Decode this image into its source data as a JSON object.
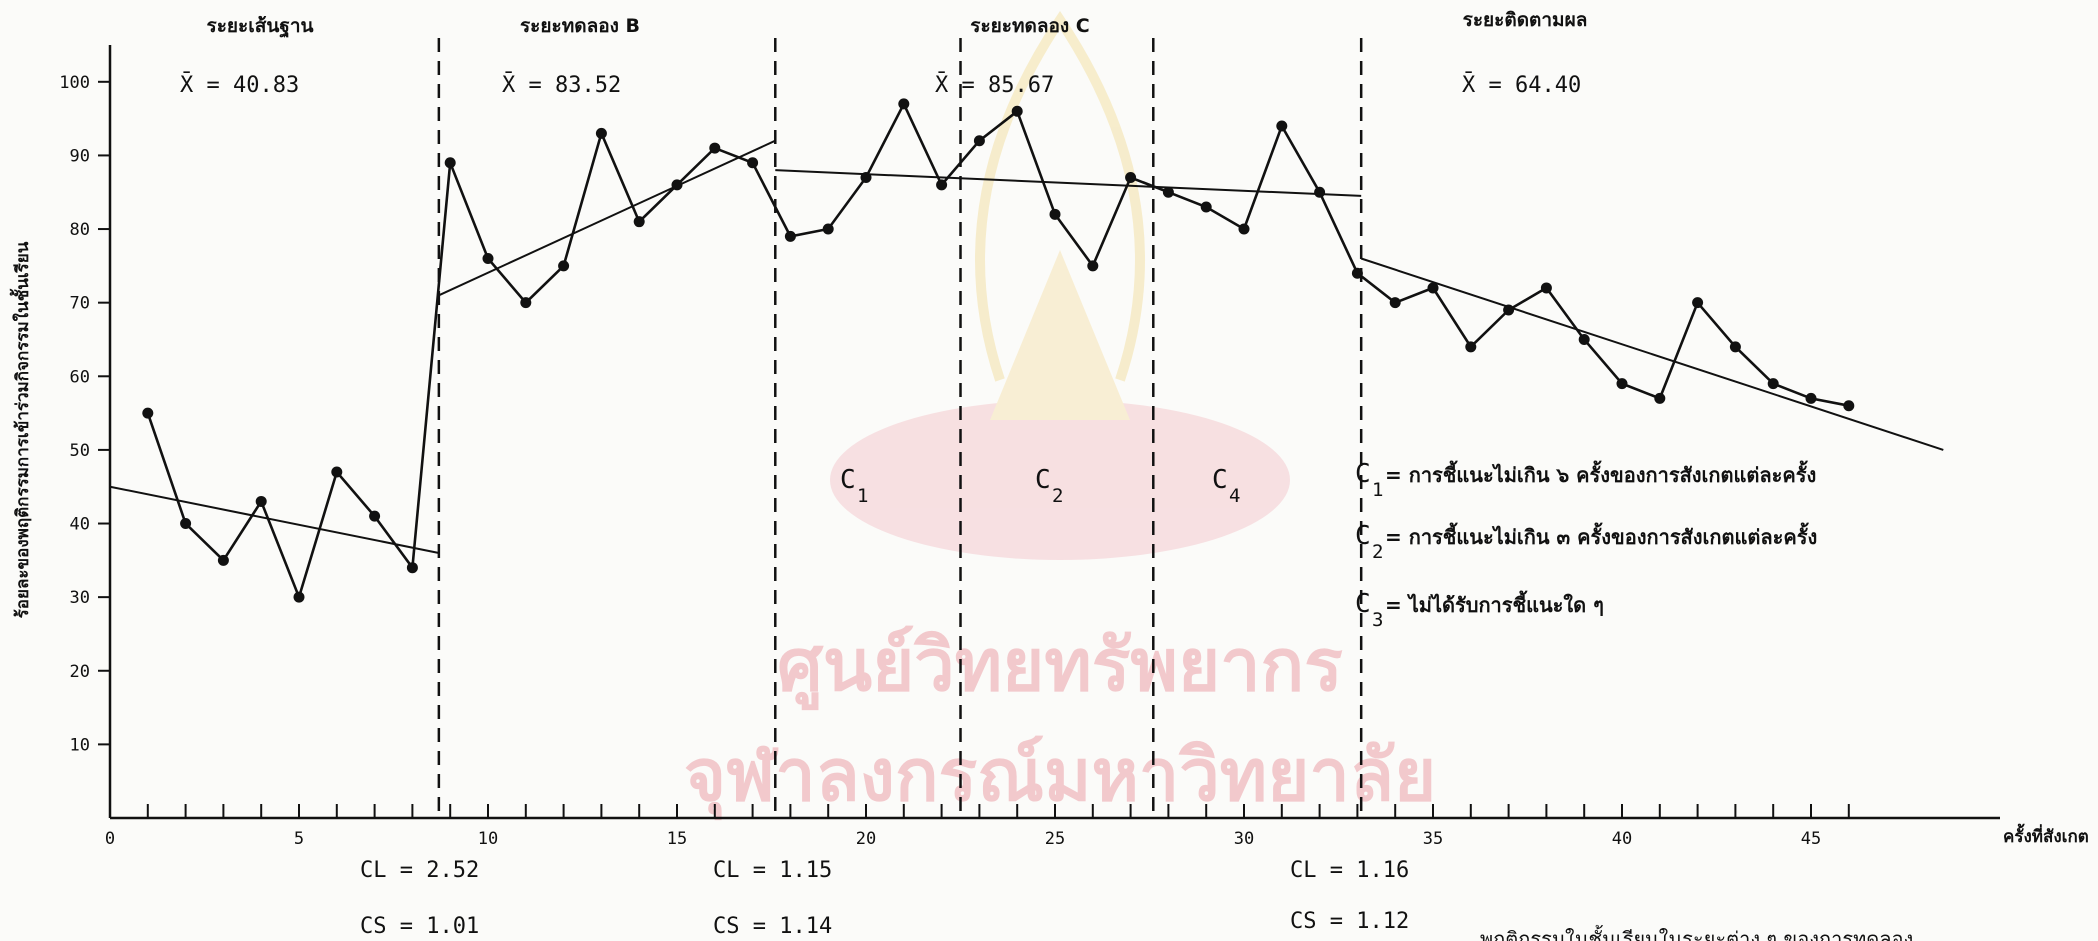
{
  "chart_data": {
    "type": "line",
    "ylabel": "ร้อยละของพฤติกรรมการเข้าร่วมกิจกรรมในชั้นเรียน",
    "xlabel": "ครั้งที่สังเกต",
    "xlim": [
      0,
      50
    ],
    "ylim": [
      0,
      105
    ],
    "x_ticks": [
      0,
      5,
      10,
      15,
      20,
      25,
      30,
      35,
      40,
      45
    ],
    "y_ticks": [
      10,
      20,
      30,
      40,
      50,
      60,
      70,
      80,
      90,
      100
    ],
    "series": [
      {
        "values": [
          {
            "x": 1,
            "y": 55
          },
          {
            "x": 2,
            "y": 40
          },
          {
            "x": 3,
            "y": 35
          },
          {
            "x": 4,
            "y": 43
          },
          {
            "x": 5,
            "y": 30
          },
          {
            "x": 6,
            "y": 47
          },
          {
            "x": 7,
            "y": 41
          },
          {
            "x": 8,
            "y": 34
          },
          {
            "x": 9,
            "y": 89
          },
          {
            "x": 10,
            "y": 76
          },
          {
            "x": 11,
            "y": 70
          },
          {
            "x": 12,
            "y": 75
          },
          {
            "x": 13,
            "y": 93
          },
          {
            "x": 14,
            "y": 81
          },
          {
            "x": 15,
            "y": 86
          },
          {
            "x": 16,
            "y": 91
          },
          {
            "x": 17,
            "y": 89
          },
          {
            "x": 18,
            "y": 79
          },
          {
            "x": 19,
            "y": 80
          },
          {
            "x": 20,
            "y": 87
          },
          {
            "x": 21,
            "y": 97
          },
          {
            "x": 22,
            "y": 86
          },
          {
            "x": 23,
            "y": 92
          },
          {
            "x": 24,
            "y": 96
          },
          {
            "x": 25,
            "y": 82
          },
          {
            "x": 26,
            "y": 75
          },
          {
            "x": 27,
            "y": 87
          },
          {
            "x": 28,
            "y": 85
          },
          {
            "x": 29,
            "y": 83
          },
          {
            "x": 30,
            "y": 80
          },
          {
            "x": 31,
            "y": 94
          },
          {
            "x": 32,
            "y": 85
          },
          {
            "x": 33,
            "y": 74
          },
          {
            "x": 34,
            "y": 70
          },
          {
            "x": 35,
            "y": 72
          },
          {
            "x": 36,
            "y": 64
          },
          {
            "x": 37,
            "y": 69
          },
          {
            "x": 38,
            "y": 72
          },
          {
            "x": 39,
            "y": 65
          },
          {
            "x": 40,
            "y": 59
          },
          {
            "x": 41,
            "y": 57
          },
          {
            "x": 42,
            "y": 70
          },
          {
            "x": 43,
            "y": 64
          },
          {
            "x": 44,
            "y": 59
          },
          {
            "x": 45,
            "y": 57
          },
          {
            "x": 46,
            "y": 56
          }
        ]
      }
    ],
    "trend_lines": [
      {
        "from": [
          0,
          45
        ],
        "to": [
          8.7,
          36
        ]
      },
      {
        "from": [
          8.7,
          71
        ],
        "to": [
          17.6,
          92
        ]
      },
      {
        "from": [
          17.6,
          88
        ],
        "to": [
          33.1,
          84.5
        ]
      },
      {
        "from": [
          33.1,
          76
        ],
        "to": [
          48.5,
          50
        ]
      }
    ],
    "phase_dividers": [
      8.7,
      17.6,
      22.5,
      27.6,
      33.1
    ],
    "phases": [
      {
        "title": "ระยะเส้นฐาน",
        "mean": "X̄ = 40.83"
      },
      {
        "title": "ระยะทดลอง B",
        "mean": "X̄ = 83.52"
      },
      {
        "title": "ระยะทดลอง C",
        "mean": "X̄ = 85.67"
      },
      {
        "title": "ระยะติดตามผล",
        "mean": "X̄ = 64.40"
      }
    ],
    "conditions": [
      {
        "letter": "C",
        "sub": "1"
      },
      {
        "letter": "C",
        "sub": "2"
      },
      {
        "letter": "C",
        "sub": "4"
      }
    ],
    "stats": [
      {
        "cl": "CL = 2.52",
        "cs": "CS = 1.01"
      },
      {
        "cl": "CL = 1.15",
        "cs": "CS = 1.14"
      },
      {
        "cl": "CL = 1.16",
        "cs": "CS = 1.12"
      }
    ],
    "legend": [
      {
        "key": "C",
        "sub": "1",
        "text": "= การชี้แนะไม่เกิน ๖ ครั้งของการสังเกตแต่ละครั้ง"
      },
      {
        "key": "C",
        "sub": "2",
        "text": "= การชี้แนะไม่เกิน ๓ ครั้งของการสังเกตแต่ละครั้ง"
      },
      {
        "key": "C",
        "sub": "3",
        "text": "= ไม่ได้รับการชี้แนะใด ๆ"
      }
    ],
    "caption_fragment": "พฤติกรรมในชั้นเรียนในระยะต่าง ๆ ของการทดลอง",
    "grid": false
  },
  "watermark": {
    "line1": "ศูนย์วิทยทรัพยากร",
    "line2": "จุฬาลงกรณ์มหาวิทยาลัย"
  }
}
